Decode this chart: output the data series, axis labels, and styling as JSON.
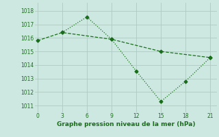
{
  "line1_x": [
    0,
    3,
    9,
    15,
    21
  ],
  "line1_y": [
    1015.8,
    1016.4,
    1015.9,
    1015.0,
    1014.55
  ],
  "line2_x": [
    3,
    6,
    9,
    12,
    15,
    18,
    21
  ],
  "line2_y": [
    1016.4,
    1017.55,
    1015.9,
    1013.55,
    1011.3,
    1012.8,
    1014.55
  ],
  "line_color": "#1a6e1a",
  "bg_color": "#cce8e0",
  "grid_color": "#b0c8c0",
  "xlabel": "Graphe pression niveau de la mer (hPa)",
  "xlabel_color": "#1a6e1a",
  "xticks": [
    0,
    3,
    6,
    9,
    12,
    15,
    18,
    21
  ],
  "yticks": [
    1011,
    1012,
    1013,
    1014,
    1015,
    1016,
    1017,
    1018
  ],
  "ylim": [
    1010.5,
    1018.6
  ],
  "xlim": [
    -0.3,
    21.8
  ]
}
